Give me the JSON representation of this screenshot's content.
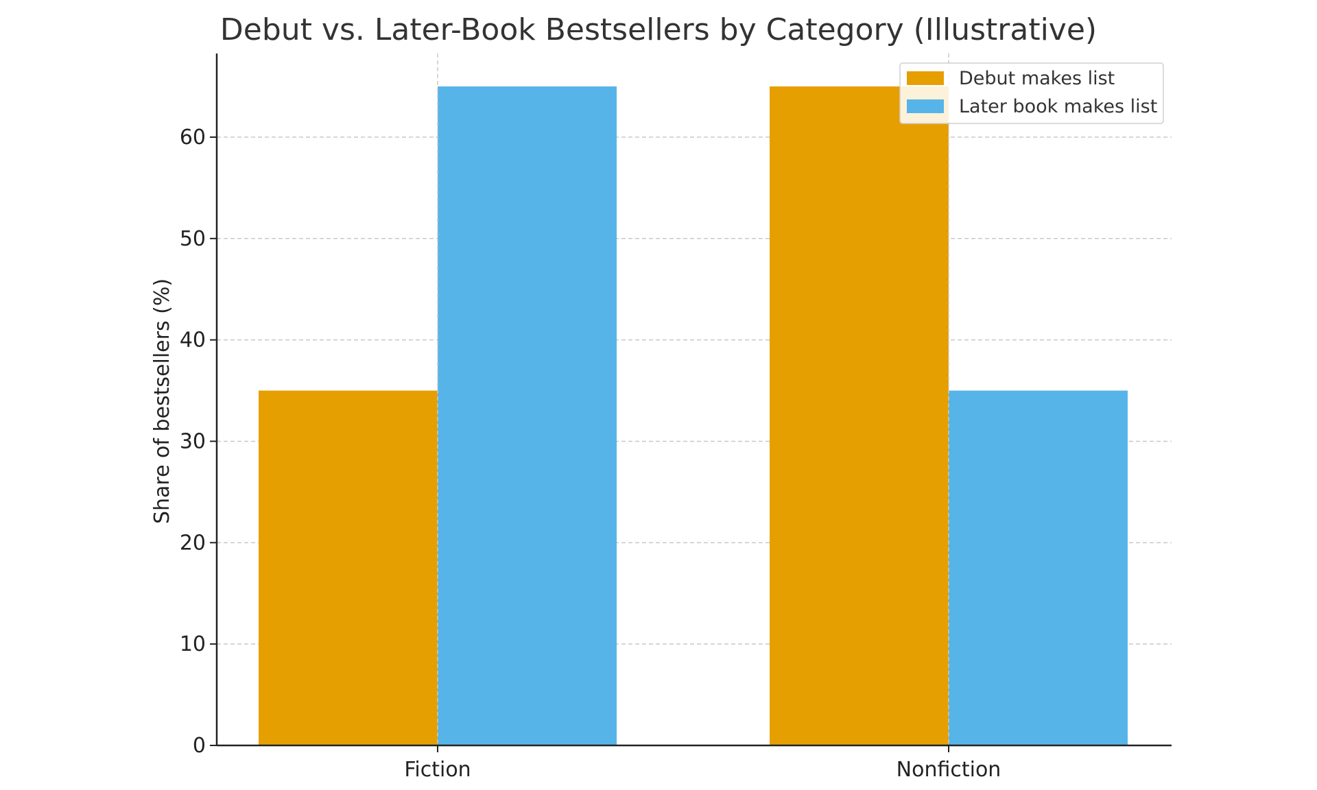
{
  "chart_data": {
    "type": "bar",
    "title": "Debut vs. Later-Book Bestsellers by Category (Illustrative)",
    "xlabel": "",
    "ylabel": "Share of bestsellers (%)",
    "categories": [
      "Fiction",
      "Nonfiction"
    ],
    "series": [
      {
        "name": "Debut makes list",
        "values": [
          35,
          65
        ],
        "color": "#E69F00"
      },
      {
        "name": "Later book makes list",
        "values": [
          65,
          35
        ],
        "color": "#56B4E9"
      }
    ],
    "ylim": [
      0,
      68.25
    ],
    "yticks": [
      0,
      10,
      20,
      30,
      40,
      50,
      60
    ],
    "grid": true,
    "legend_position": "top-right"
  }
}
